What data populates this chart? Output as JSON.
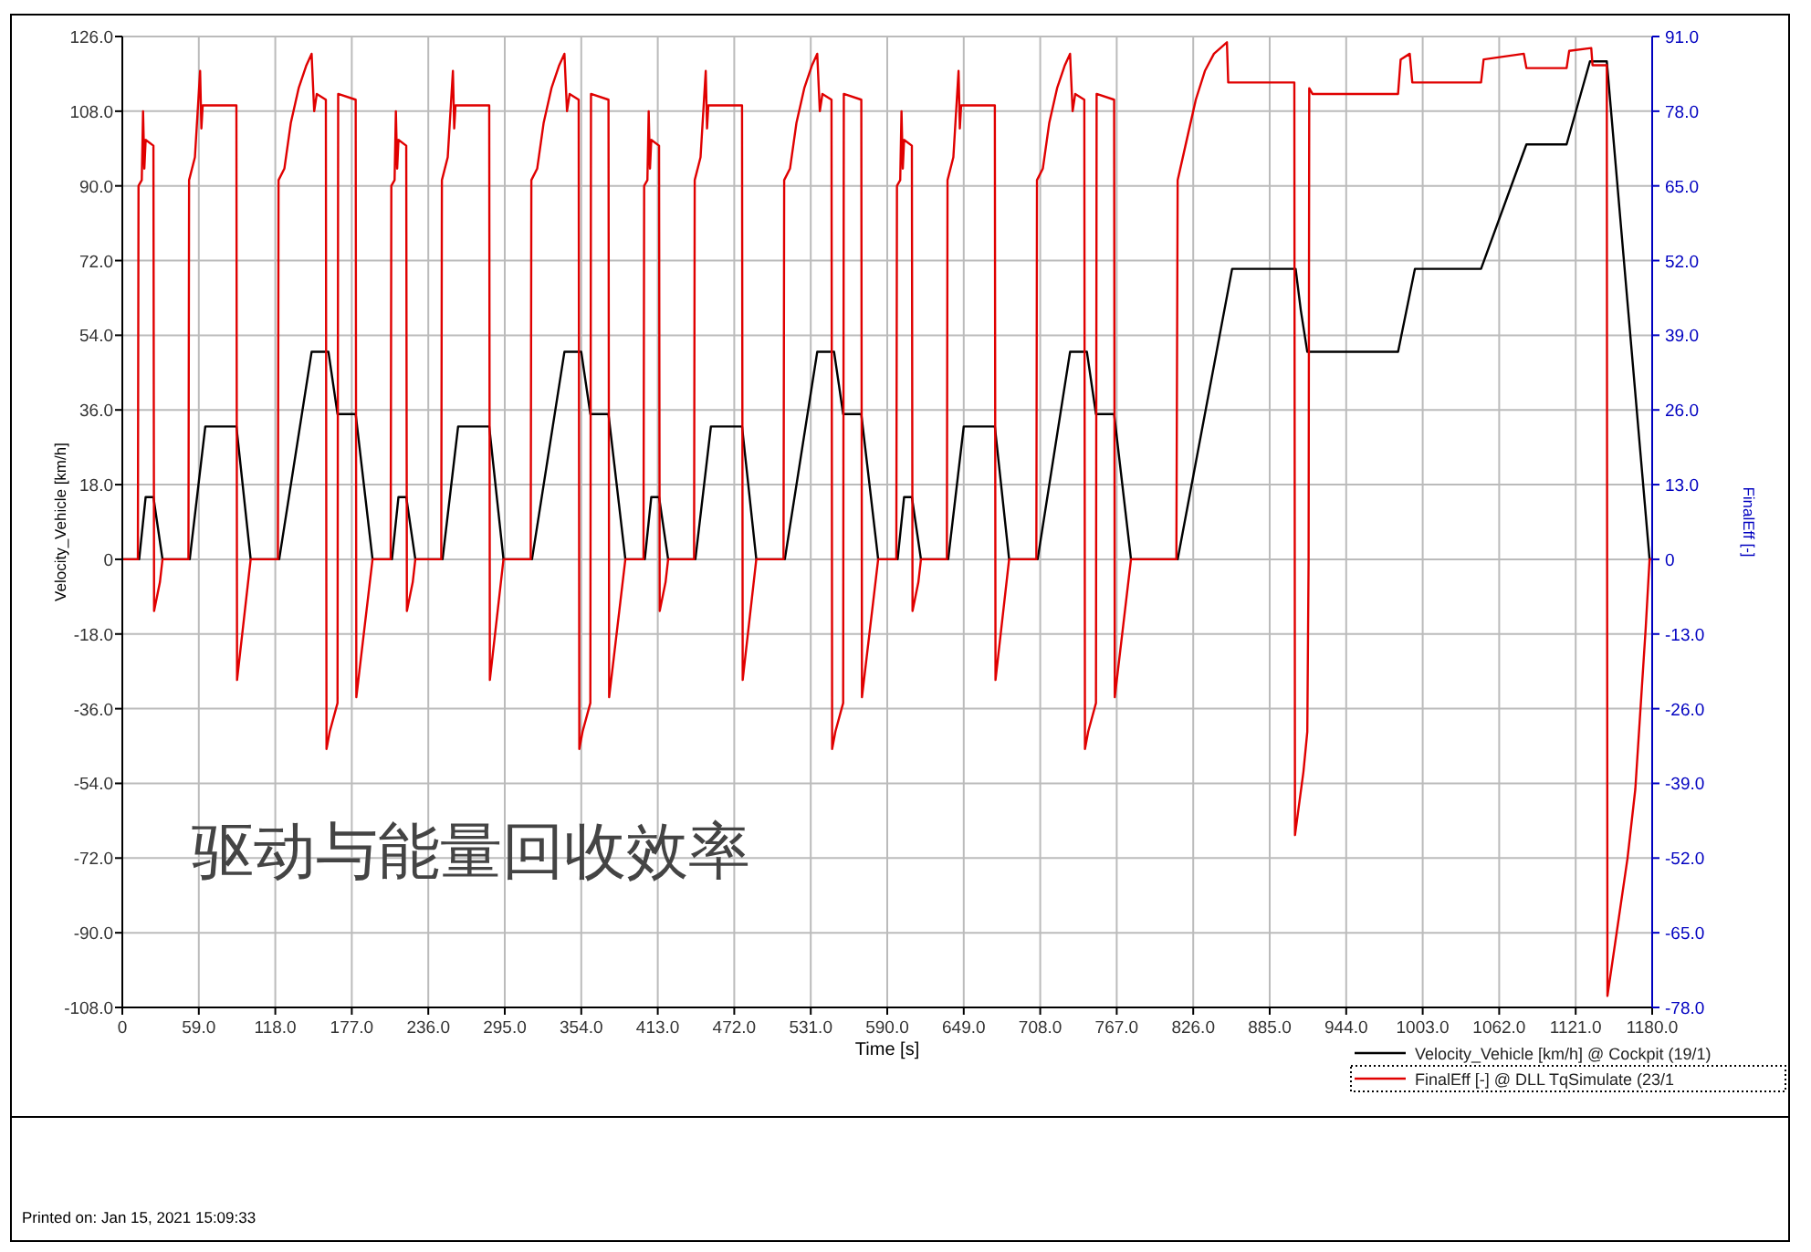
{
  "chart_data": {
    "type": "line",
    "xlabel": "Time [s]",
    "ylabel": "Velocity_Vehicle [km/h]",
    "y2label": "FinalEff [-]",
    "annotations": [
      "驱动与能量回收效率",
      "Printed on: Jan 15, 2021 15:09:33"
    ],
    "xlim": [
      0,
      1180
    ],
    "xticks": [
      0,
      {
        "value": 59,
        "label": "59.0"
      },
      {
        "value": 118,
        "label": "118.0"
      },
      {
        "value": 177,
        "label": "177.0"
      },
      {
        "value": 236,
        "label": "236.0"
      },
      {
        "value": 295,
        "label": "295.0"
      },
      {
        "value": 354,
        "label": "354.0"
      },
      {
        "value": 413,
        "label": "413.0"
      },
      {
        "value": 472,
        "label": "472.0"
      },
      {
        "value": 531,
        "label": "531.0"
      },
      {
        "value": 590,
        "label": "590.0"
      },
      {
        "value": 649,
        "label": "649.0"
      },
      {
        "value": 708,
        "label": "708.0"
      },
      {
        "value": 767,
        "label": "767.0"
      },
      {
        "value": 826,
        "label": "826.0"
      },
      {
        "value": 885,
        "label": "885.0"
      },
      {
        "value": 944,
        "label": "944.0"
      },
      {
        "value": 1003,
        "label": "1003.0"
      },
      {
        "value": 1062,
        "label": "1062.0"
      },
      {
        "value": 1121,
        "label": "1121.0"
      },
      {
        "value": 1180,
        "label": "1180.0"
      }
    ],
    "ylim": [
      -108,
      126
    ],
    "yticks": [
      {
        "value": -108,
        "label": "-108.0"
      },
      {
        "value": -90,
        "label": "-90.0"
      },
      {
        "value": -72,
        "label": "-72.0"
      },
      {
        "value": -54,
        "label": "-54.0"
      },
      {
        "value": -36,
        "label": "-36.0"
      },
      {
        "value": -18,
        "label": "-18.0"
      },
      0,
      {
        "value": 18,
        "label": "18.0"
      },
      {
        "value": 36,
        "label": "36.0"
      },
      {
        "value": 54,
        "label": "54.0"
      },
      {
        "value": 72,
        "label": "72.0"
      },
      {
        "value": 90,
        "label": "90.0"
      },
      {
        "value": 108,
        "label": "108.0"
      },
      {
        "value": 126,
        "label": "126.0"
      }
    ],
    "y2lim": [
      -78,
      91
    ],
    "y2ticks": [
      {
        "value": -78,
        "label": "-78.0"
      },
      {
        "value": -65,
        "label": "-65.0"
      },
      {
        "value": -52,
        "label": "-52.0"
      },
      {
        "value": -39,
        "label": "-39.0"
      },
      {
        "value": -26,
        "label": "-26.0"
      },
      {
        "value": -13,
        "label": "-13.0"
      },
      0,
      {
        "value": 13,
        "label": "13.0"
      },
      {
        "value": 26,
        "label": "26.0"
      },
      {
        "value": 39,
        "label": "39.0"
      },
      {
        "value": 52,
        "label": "52.0"
      },
      {
        "value": 65,
        "label": "65.0"
      },
      {
        "value": 78,
        "label": "78.0"
      },
      {
        "value": 91,
        "label": "91.0"
      }
    ],
    "grid": true,
    "legend": "bottom right",
    "line_style": "solid",
    "series": [
      {
        "name": "Velocity_Vehicle [km/h] @ Cockpit (19/1)",
        "color": "#000000",
        "x": [
          0,
          13,
          18,
          24,
          31,
          52,
          64,
          88,
          99,
          121,
          146,
          159,
          166,
          180,
          193,
          195,
          208,
          213,
          219,
          226,
          247,
          259,
          283,
          294,
          316,
          341,
          354,
          361,
          375,
          388,
          390,
          403,
          408,
          414,
          421,
          442,
          454,
          478,
          489,
          511,
          536,
          549,
          556,
          570,
          583,
          585,
          598,
          603,
          609,
          616,
          637,
          649,
          673,
          684,
          706,
          731,
          744,
          751,
          765,
          778,
          814,
          856,
          905,
          909,
          914,
          984,
          997,
          1048,
          1083,
          1114,
          1132,
          1145,
          1178,
          1180
        ],
        "values": [
          0,
          0,
          15,
          15,
          0,
          0,
          32,
          32,
          0,
          0,
          50,
          50,
          35,
          35,
          0,
          0,
          0,
          15,
          15,
          0,
          0,
          32,
          32,
          0,
          0,
          50,
          50,
          35,
          35,
          0,
          0,
          0,
          15,
          15,
          0,
          0,
          32,
          32,
          0,
          0,
          50,
          50,
          35,
          35,
          0,
          0,
          0,
          15,
          15,
          0,
          0,
          32,
          32,
          0,
          0,
          50,
          50,
          35,
          35,
          0,
          0,
          70,
          70,
          60,
          50,
          50,
          70,
          70,
          100,
          100,
          120,
          120,
          0,
          0
        ]
      },
      {
        "name": "FinalEff [-] @ DLL TqSimulate (23/1",
        "color": "#e00000",
        "axis": "y2",
        "x": [
          0,
          12,
          12.5,
          15,
          16,
          17,
          18,
          24,
          24.5,
          29,
          31,
          51,
          51.5,
          56,
          60,
          61,
          62,
          88,
          88.5,
          99,
          120,
          120.5,
          125,
          130,
          136,
          142,
          146,
          148,
          150,
          157,
          157.5,
          160,
          166,
          166.5,
          180,
          180.5,
          193,
          207,
          207.5,
          210,
          211,
          212,
          213,
          219,
          219.5,
          224,
          226,
          246,
          246.5,
          251,
          255,
          256,
          257,
          283,
          283.5,
          294,
          315,
          315.5,
          320,
          325,
          331,
          337,
          341,
          343,
          345,
          352,
          352.5,
          355,
          361,
          361.5,
          375,
          375.5,
          388,
          402,
          402.5,
          405,
          406,
          407,
          408,
          414,
          414.5,
          419,
          421,
          441,
          441.5,
          446,
          450,
          451,
          452,
          478,
          478.5,
          489,
          510,
          510.5,
          515,
          520,
          526,
          532,
          536,
          538,
          540,
          547,
          547.5,
          550,
          556,
          556.5,
          570,
          570.5,
          583,
          597,
          597.5,
          600,
          601,
          602,
          603,
          609,
          609.5,
          614,
          616,
          636,
          636.5,
          641,
          645,
          646,
          647,
          673,
          673.5,
          684,
          705,
          705.5,
          710,
          715,
          721,
          727,
          731,
          733,
          735,
          742,
          742.5,
          745,
          751,
          751.5,
          765,
          765.5,
          778,
          813,
          814,
          820,
          828,
          835,
          842,
          852,
          853,
          904,
          904.5,
          911,
          914,
          915,
          915.5,
          918,
          984,
          986,
          993,
          995,
          1048,
          1050,
          1081,
          1083,
          1114,
          1116,
          1133,
          1134,
          1145,
          1145.5,
          1161,
          1167,
          1175,
          1178,
          1180
        ],
        "values": [
          0,
          0,
          65,
          66,
          78,
          68,
          73,
          72,
          -9,
          -4,
          0,
          0,
          66,
          70,
          85,
          75,
          79,
          79,
          -21,
          0,
          0,
          66,
          68,
          76,
          82,
          86,
          88,
          78,
          81,
          80,
          -33,
          -30,
          -25,
          81,
          80,
          -24,
          0,
          0,
          65,
          66,
          78,
          68,
          73,
          72,
          -9,
          -4,
          0,
          0,
          66,
          70,
          85,
          75,
          79,
          79,
          -21,
          0,
          0,
          66,
          68,
          76,
          82,
          86,
          88,
          78,
          81,
          80,
          -33,
          -30,
          -25,
          81,
          80,
          -24,
          0,
          0,
          65,
          66,
          78,
          68,
          73,
          72,
          -9,
          -4,
          0,
          0,
          66,
          70,
          85,
          75,
          79,
          79,
          -21,
          0,
          0,
          66,
          68,
          76,
          82,
          86,
          88,
          78,
          81,
          80,
          -33,
          -30,
          -25,
          81,
          80,
          -24,
          0,
          0,
          65,
          66,
          78,
          68,
          73,
          72,
          -9,
          -4,
          0,
          0,
          66,
          70,
          85,
          75,
          79,
          79,
          -21,
          0,
          0,
          66,
          68,
          76,
          82,
          86,
          88,
          78,
          81,
          80,
          -33,
          -30,
          -25,
          81,
          80,
          -24,
          0,
          0,
          66,
          72,
          80,
          85,
          88,
          90,
          83,
          83,
          -48,
          -37,
          -30,
          0,
          82,
          81,
          81,
          87,
          88,
          83,
          83,
          87,
          88,
          85.5,
          85.5,
          88.5,
          89,
          86,
          86,
          -76,
          -52,
          -40,
          -12,
          0,
          0
        ]
      }
    ]
  }
}
